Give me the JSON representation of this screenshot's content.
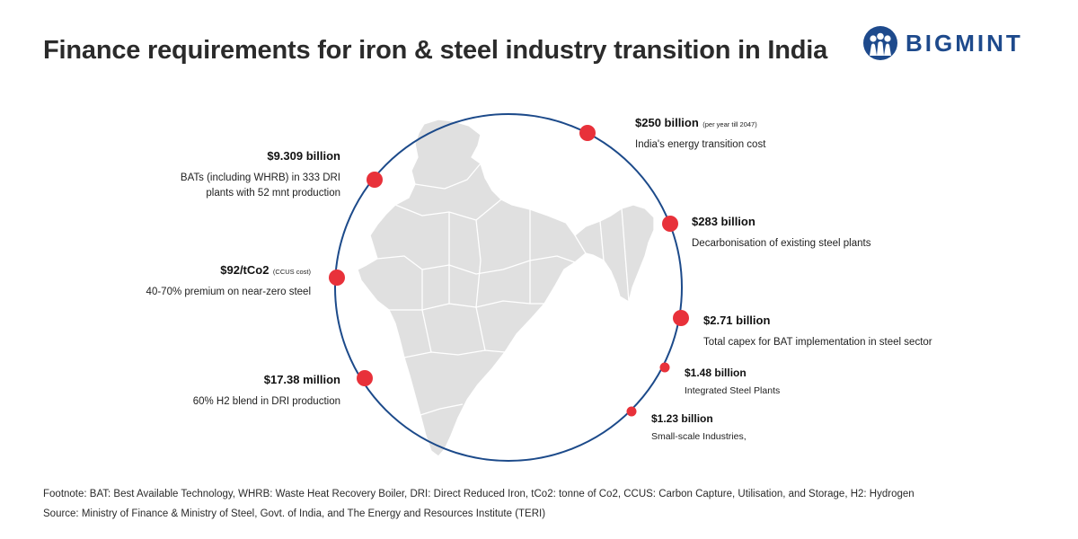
{
  "header": {
    "title": "Finance requirements for iron & steel industry transition in India",
    "logo_text": "BIGMINT"
  },
  "colors": {
    "accent_red": "#e8313a",
    "ring_blue": "#1c4a8a",
    "map_fill": "#e0e0e0",
    "map_stroke": "#ffffff"
  },
  "items": [
    {
      "amount": "$250 billion",
      "note": "(per year till 2047)",
      "desc": "India's energy transition cost"
    },
    {
      "amount": "$283 billion",
      "note": "",
      "desc": "Decarbonisation of existing steel plants"
    },
    {
      "amount": "$2.71 billion",
      "note": "",
      "desc": "Total capex for BAT implementation in steel sector"
    },
    {
      "amount": "$1.48 billion",
      "note": "",
      "desc": "Integrated Steel Plants"
    },
    {
      "amount": "$1.23 billion",
      "note": "",
      "desc": "Small-scale Industries,"
    },
    {
      "amount": "$9.309 billion",
      "note": "",
      "desc_line1": "BATs (including WHRB) in 333 DRI",
      "desc_line2": "plants with 52 mnt production"
    },
    {
      "amount": "$92/tCo2",
      "note": "(CCUS cost)",
      "desc": "40-70% premium on near-zero steel"
    },
    {
      "amount": "$17.38 million",
      "note": "",
      "desc": "60% H2 blend in DRI production"
    }
  ],
  "footnote": "Footnote: BAT: Best Available Technology, WHRB: Waste Heat Recovery Boiler, DRI: Direct Reduced Iron, tCo2: tonne of Co2, CCUS: Carbon Capture, Utilisation, and Storage, H2: Hydrogen",
  "source": "Source: Ministry of Finance & Ministry of Steel, Govt. of India, and The Energy and Resources Institute (TERI)"
}
